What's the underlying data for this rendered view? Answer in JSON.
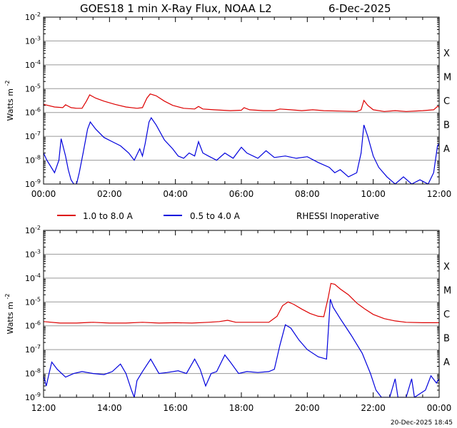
{
  "header": {
    "title": "GOES18 1 min X-Ray Flux, NOAA L2",
    "date": "6-Dec-2025"
  },
  "legend": {
    "items": [
      {
        "label": "1.0 to 8.0 A",
        "color": "#dd0000"
      },
      {
        "label": "0.5 to 4.0 A",
        "color": "#0000dd"
      }
    ],
    "note": "RHESSI Inoperative"
  },
  "footer": {
    "timestamp": "20-Dec-2025 18:45"
  },
  "y_axis": {
    "label_base": "Watts m",
    "label_exp": "-2",
    "tick_base": "10",
    "tick_exponents": [
      "-9",
      "-8",
      "-7",
      "-6",
      "-5",
      "-4",
      "-3",
      "-2"
    ],
    "scale": "log",
    "range": [
      1e-09,
      0.01
    ]
  },
  "class_labels": [
    "A",
    "B",
    "C",
    "M",
    "X"
  ],
  "colors": {
    "long": "#dd0000",
    "short": "#0000dd",
    "grid": "#999999",
    "axis": "#000000"
  },
  "chart_data": [
    {
      "type": "line",
      "title": "GOES18 1 min X-Ray Flux, NOAA L2",
      "x_range": [
        "00:00",
        "12:00"
      ],
      "x_ticks": [
        "00:00",
        "02:00",
        "04:00",
        "06:00",
        "08:00",
        "10:00",
        "12:00"
      ],
      "ylabel": "Watts m-2",
      "yscale": "log",
      "ylim": [
        1e-09,
        0.01
      ],
      "grid": true,
      "series": [
        {
          "name": "1.0 to 8.0 A",
          "color": "#dd0000",
          "points": [
            [
              "00:00",
              2.2e-06
            ],
            [
              "00:20",
              1.7e-06
            ],
            [
              "00:35",
              1.6e-06
            ],
            [
              "00:40",
              2.1e-06
            ],
            [
              "00:50",
              1.6e-06
            ],
            [
              "01:00",
              1.5e-06
            ],
            [
              "01:10",
              1.5e-06
            ],
            [
              "01:18",
              3e-06
            ],
            [
              "01:24",
              5.5e-06
            ],
            [
              "01:35",
              4e-06
            ],
            [
              "01:50",
              3e-06
            ],
            [
              "02:10",
              2.2e-06
            ],
            [
              "02:30",
              1.7e-06
            ],
            [
              "02:50",
              1.5e-06
            ],
            [
              "03:00",
              1.6e-06
            ],
            [
              "03:08",
              4e-06
            ],
            [
              "03:14",
              6e-06
            ],
            [
              "03:25",
              5e-06
            ],
            [
              "03:40",
              3e-06
            ],
            [
              "03:55",
              2e-06
            ],
            [
              "04:15",
              1.5e-06
            ],
            [
              "04:35",
              1.4e-06
            ],
            [
              "04:42",
              1.8e-06
            ],
            [
              "04:50",
              1.4e-06
            ],
            [
              "05:10",
              1.3e-06
            ],
            [
              "05:40",
              1.2e-06
            ],
            [
              "06:00",
              1.25e-06
            ],
            [
              "06:05",
              1.6e-06
            ],
            [
              "06:15",
              1.3e-06
            ],
            [
              "06:40",
              1.2e-06
            ],
            [
              "07:00",
              1.2e-06
            ],
            [
              "07:10",
              1.4e-06
            ],
            [
              "07:30",
              1.3e-06
            ],
            [
              "07:50",
              1.2e-06
            ],
            [
              "08:10",
              1.3e-06
            ],
            [
              "08:30",
              1.2e-06
            ],
            [
              "09:00",
              1.15e-06
            ],
            [
              "09:30",
              1.1e-06
            ],
            [
              "09:38",
              1.3e-06
            ],
            [
              "09:43",
              3.2e-06
            ],
            [
              "09:50",
              2e-06
            ],
            [
              "10:00",
              1.3e-06
            ],
            [
              "10:20",
              1.1e-06
            ],
            [
              "10:40",
              1.2e-06
            ],
            [
              "11:00",
              1.1e-06
            ],
            [
              "11:30",
              1.2e-06
            ],
            [
              "11:50",
              1.3e-06
            ],
            [
              "11:57",
              1.8e-06
            ],
            [
              "12:00",
              1.7e-06
            ]
          ]
        },
        {
          "name": "0.5 to 4.0 A",
          "color": "#0000dd",
          "points": [
            [
              "00:00",
              2e-08
            ],
            [
              "00:06",
              1e-08
            ],
            [
              "00:12",
              6e-09
            ],
            [
              "00:20",
              3e-09
            ],
            [
              "00:28",
              1e-08
            ],
            [
              "00:32",
              8e-08
            ],
            [
              "00:40",
              1.5e-08
            ],
            [
              "00:45",
              4e-09
            ],
            [
              "00:50",
              1.5e-09
            ],
            [
              "00:55",
              1e-09
            ],
            [
              "01:00",
              1e-09
            ],
            [
              "01:05",
              3e-09
            ],
            [
              "01:12",
              2e-08
            ],
            [
              "01:20",
              2e-07
            ],
            [
              "01:25",
              4e-07
            ],
            [
              "01:35",
              2e-07
            ],
            [
              "01:50",
              9e-08
            ],
            [
              "02:05",
              6e-08
            ],
            [
              "02:20",
              4e-08
            ],
            [
              "02:35",
              2e-08
            ],
            [
              "02:45",
              1e-08
            ],
            [
              "02:55",
              3e-08
            ],
            [
              "03:00",
              1.5e-08
            ],
            [
              "03:05",
              5e-08
            ],
            [
              "03:12",
              4e-07
            ],
            [
              "03:16",
              6e-07
            ],
            [
              "03:25",
              3e-07
            ],
            [
              "03:40",
              7e-08
            ],
            [
              "03:55",
              3e-08
            ],
            [
              "04:05",
              1.5e-08
            ],
            [
              "04:15",
              1.2e-08
            ],
            [
              "04:25",
              2e-08
            ],
            [
              "04:35",
              1.5e-08
            ],
            [
              "04:42",
              6e-08
            ],
            [
              "04:50",
              2e-08
            ],
            [
              "05:00",
              1.5e-08
            ],
            [
              "05:15",
              1e-08
            ],
            [
              "05:30",
              2e-08
            ],
            [
              "05:45",
              1.2e-08
            ],
            [
              "06:00",
              3.5e-08
            ],
            [
              "06:10",
              2e-08
            ],
            [
              "06:30",
              1.2e-08
            ],
            [
              "06:45",
              2.5e-08
            ],
            [
              "07:00",
              1.3e-08
            ],
            [
              "07:20",
              1.5e-08
            ],
            [
              "07:40",
              1.2e-08
            ],
            [
              "08:00",
              1.4e-08
            ],
            [
              "08:20",
              8e-09
            ],
            [
              "08:40",
              5e-09
            ],
            [
              "08:50",
              3e-09
            ],
            [
              "09:00",
              4e-09
            ],
            [
              "09:15",
              2e-09
            ],
            [
              "09:30",
              3e-09
            ],
            [
              "09:38",
              2e-08
            ],
            [
              "09:43",
              3e-07
            ],
            [
              "09:50",
              1e-07
            ],
            [
              "10:00",
              1.5e-08
            ],
            [
              "10:10",
              5e-09
            ],
            [
              "10:25",
              2e-09
            ],
            [
              "10:40",
              1e-09
            ],
            [
              "10:55",
              2e-09
            ],
            [
              "11:10",
              1e-09
            ],
            [
              "11:25",
              1.5e-09
            ],
            [
              "11:40",
              1e-09
            ],
            [
              "11:50",
              3e-09
            ],
            [
              "11:57",
              4e-08
            ],
            [
              "12:00",
              5e-08
            ]
          ]
        }
      ]
    },
    {
      "type": "line",
      "x_range": [
        "12:00",
        "00:00"
      ],
      "x_ticks": [
        "12:00",
        "14:00",
        "16:00",
        "18:00",
        "20:00",
        "22:00",
        "00:00"
      ],
      "ylabel": "Watts m-2",
      "yscale": "log",
      "ylim": [
        1e-09,
        0.01
      ],
      "grid": true,
      "series": [
        {
          "name": "1.0 to 8.0 A",
          "color": "#dd0000",
          "points": [
            [
              "12:00",
              1.5e-06
            ],
            [
              "12:30",
              1.3e-06
            ],
            [
              "13:00",
              1.3e-06
            ],
            [
              "13:30",
              1.4e-06
            ],
            [
              "14:00",
              1.3e-06
            ],
            [
              "14:30",
              1.3e-06
            ],
            [
              "15:00",
              1.4e-06
            ],
            [
              "15:30",
              1.3e-06
            ],
            [
              "16:00",
              1.35e-06
            ],
            [
              "16:30",
              1.3e-06
            ],
            [
              "17:00",
              1.4e-06
            ],
            [
              "17:20",
              1.5e-06
            ],
            [
              "17:35",
              1.7e-06
            ],
            [
              "17:50",
              1.4e-06
            ],
            [
              "18:20",
              1.4e-06
            ],
            [
              "18:50",
              1.4e-06
            ],
            [
              "19:05",
              2.5e-06
            ],
            [
              "19:15",
              7e-06
            ],
            [
              "19:25",
              1e-05
            ],
            [
              "19:35",
              8e-06
            ],
            [
              "19:50",
              5e-06
            ],
            [
              "20:05",
              3.3e-06
            ],
            [
              "20:20",
              2.5e-06
            ],
            [
              "20:30",
              2.4e-06
            ],
            [
              "20:38",
              1.5e-05
            ],
            [
              "20:43",
              6e-05
            ],
            [
              "20:50",
              5.5e-05
            ],
            [
              "21:00",
              3.5e-05
            ],
            [
              "21:15",
              2e-05
            ],
            [
              "21:30",
              9e-06
            ],
            [
              "21:45",
              5e-06
            ],
            [
              "22:00",
              3e-06
            ],
            [
              "22:20",
              2e-06
            ],
            [
              "22:40",
              1.6e-06
            ],
            [
              "23:00",
              1.4e-06
            ],
            [
              "23:30",
              1.35e-06
            ],
            [
              "24:00",
              1.35e-06
            ]
          ]
        },
        {
          "name": "0.5 to 4.0 A",
          "color": "#0000dd",
          "points": [
            [
              "12:00",
              8e-09
            ],
            [
              "12:05",
              3e-09
            ],
            [
              "12:10",
              1e-08
            ],
            [
              "12:15",
              3e-08
            ],
            [
              "12:25",
              1.5e-08
            ],
            [
              "12:40",
              7e-09
            ],
            [
              "12:55",
              1e-08
            ],
            [
              "13:10",
              1.2e-08
            ],
            [
              "13:30",
              1e-08
            ],
            [
              "13:50",
              9e-09
            ],
            [
              "14:05",
              1.2e-08
            ],
            [
              "14:20",
              2.5e-08
            ],
            [
              "14:30",
              1e-08
            ],
            [
              "14:40",
              2e-09
            ],
            [
              "14:45",
              1e-09
            ],
            [
              "14:50",
              5e-09
            ],
            [
              "15:00",
              1.2e-08
            ],
            [
              "15:15",
              4e-08
            ],
            [
              "15:30",
              1e-08
            ],
            [
              "15:45",
              1.1e-08
            ],
            [
              "16:05",
              1.3e-08
            ],
            [
              "16:20",
              1e-08
            ],
            [
              "16:35",
              4e-08
            ],
            [
              "16:45",
              1.5e-08
            ],
            [
              "16:55",
              3e-09
            ],
            [
              "17:05",
              1e-08
            ],
            [
              "17:15",
              1.2e-08
            ],
            [
              "17:30",
              6e-08
            ],
            [
              "17:40",
              3e-08
            ],
            [
              "17:55",
              1e-08
            ],
            [
              "18:10",
              1.2e-08
            ],
            [
              "18:30",
              1.1e-08
            ],
            [
              "18:50",
              1.2e-08
            ],
            [
              "19:00",
              1.5e-08
            ],
            [
              "19:10",
              1.5e-07
            ],
            [
              "19:20",
              1.1e-06
            ],
            [
              "19:30",
              8e-07
            ],
            [
              "19:45",
              2.5e-07
            ],
            [
              "20:00",
              1e-07
            ],
            [
              "20:20",
              5e-08
            ],
            [
              "20:35",
              4e-08
            ],
            [
              "20:42",
              1.3e-05
            ],
            [
              "20:47",
              6e-06
            ],
            [
              "21:00",
              2e-06
            ],
            [
              "21:20",
              4e-07
            ],
            [
              "21:40",
              7e-08
            ],
            [
              "21:55",
              1e-08
            ],
            [
              "22:05",
              2e-09
            ],
            [
              "22:15",
              1e-09
            ],
            [
              "22:30",
              1e-09
            ],
            [
              "22:40",
              6e-09
            ],
            [
              "22:45",
              1e-09
            ],
            [
              "23:00",
              1e-09
            ],
            [
              "23:10",
              6e-09
            ],
            [
              "23:15",
              1e-09
            ],
            [
              "23:35",
              2e-09
            ],
            [
              "23:45",
              8e-09
            ],
            [
              "23:55",
              4e-09
            ],
            [
              "24:00",
              6e-09
            ]
          ]
        }
      ]
    }
  ]
}
